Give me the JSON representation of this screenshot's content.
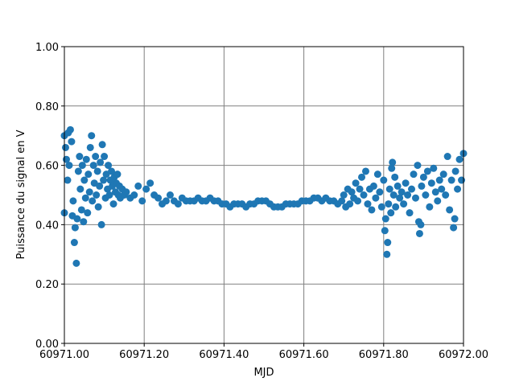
{
  "chart_data": {
    "type": "scatter",
    "xlabel": "MJD",
    "ylabel": "Puissance du signal en V",
    "color": "#1f77b4",
    "grid": true,
    "xlim": [
      60971.0,
      60972.0
    ],
    "xticks": [
      {
        "value": 60971.0,
        "label": "60971.00"
      },
      {
        "value": 60971.2,
        "label": "60971.20"
      },
      {
        "value": 60971.4,
        "label": "60971.40"
      },
      {
        "value": 60971.6,
        "label": "60971.60"
      },
      {
        "value": 60971.8,
        "label": "60971.80"
      },
      {
        "value": 60972.0,
        "label": "60972.00"
      }
    ],
    "ylim": [
      0.0,
      1.0
    ],
    "yticks": [
      {
        "value": 0.0,
        "label": "0.00"
      },
      {
        "value": 0.2,
        "label": "0.20"
      },
      {
        "value": 0.4,
        "label": "0.40"
      },
      {
        "value": 0.6,
        "label": "0.60"
      },
      {
        "value": 0.8,
        "label": "0.80"
      },
      {
        "value": 1.0,
        "label": "1.00"
      }
    ],
    "x": [
      60971.0,
      60971.0,
      60971.003,
      60971.005,
      60971.008,
      60971.01,
      60971.012,
      60971.015,
      60971.018,
      60971.02,
      60971.022,
      60971.025,
      60971.027,
      60971.03,
      60971.032,
      60971.035,
      60971.038,
      60971.04,
      60971.043,
      60971.045,
      60971.048,
      60971.05,
      60971.053,
      60971.055,
      60971.058,
      60971.06,
      60971.063,
      60971.065,
      60971.068,
      60971.07,
      60971.073,
      60971.075,
      60971.078,
      60971.08,
      60971.083,
      60971.085,
      60971.088,
      60971.09,
      60971.093,
      60971.095,
      60971.098,
      60971.1,
      60971.103,
      60971.105,
      60971.108,
      60971.11,
      60971.113,
      60971.115,
      60971.118,
      60971.12,
      60971.123,
      60971.125,
      60971.128,
      60971.13,
      60971.133,
      60971.135,
      60971.138,
      60971.14,
      60971.145,
      60971.15,
      60971.155,
      60971.165,
      60971.175,
      60971.185,
      60971.195,
      60971.205,
      60971.215,
      60971.225,
      60971.235,
      60971.245,
      60971.255,
      60971.265,
      60971.275,
      60971.285,
      60971.295,
      60971.305,
      60971.315,
      60971.325,
      60971.335,
      60971.345,
      60971.355,
      60971.365,
      60971.375,
      60971.385,
      60971.395,
      60971.405,
      60971.415,
      60971.425,
      60971.435,
      60971.445,
      60971.455,
      60971.465,
      60971.475,
      60971.485,
      60971.495,
      60971.505,
      60971.515,
      60971.525,
      60971.535,
      60971.545,
      60971.555,
      60971.565,
      60971.575,
      60971.585,
      60971.595,
      60971.605,
      60971.615,
      60971.625,
      60971.635,
      60971.645,
      60971.655,
      60971.665,
      60971.675,
      60971.685,
      60971.695,
      60971.7,
      60971.705,
      60971.71,
      60971.715,
      60971.72,
      60971.725,
      60971.73,
      60971.735,
      60971.74,
      60971.745,
      60971.75,
      60971.755,
      60971.76,
      60971.765,
      60971.77,
      60971.775,
      60971.78,
      60971.785,
      60971.79,
      60971.795,
      60971.8,
      60971.803,
      60971.805,
      60971.808,
      60971.81,
      60971.812,
      60971.815,
      60971.818,
      60971.82,
      60971.822,
      60971.825,
      60971.828,
      60971.83,
      60971.835,
      60971.84,
      60971.845,
      60971.85,
      60971.855,
      60971.86,
      60971.865,
      60971.87,
      60971.875,
      60971.88,
      60971.885,
      60971.888,
      60971.89,
      60971.893,
      60971.895,
      60971.9,
      60971.905,
      60971.91,
      60971.915,
      60971.92,
      60971.925,
      60971.93,
      60971.935,
      60971.94,
      60971.945,
      60971.95,
      60971.955,
      60971.96,
      60971.965,
      60971.97,
      60971.975,
      60971.978,
      60971.98,
      60971.985,
      60971.99,
      60971.995,
      60972.0
    ],
    "values": [
      0.44,
      0.7,
      0.66,
      0.62,
      0.55,
      0.71,
      0.6,
      0.72,
      0.68,
      0.43,
      0.48,
      0.34,
      0.39,
      0.27,
      0.42,
      0.58,
      0.63,
      0.52,
      0.45,
      0.6,
      0.41,
      0.55,
      0.49,
      0.62,
      0.44,
      0.57,
      0.51,
      0.66,
      0.7,
      0.48,
      0.6,
      0.54,
      0.63,
      0.5,
      0.58,
      0.46,
      0.53,
      0.61,
      0.4,
      0.67,
      0.55,
      0.63,
      0.49,
      0.57,
      0.52,
      0.6,
      0.5,
      0.55,
      0.58,
      0.53,
      0.47,
      0.56,
      0.51,
      0.54,
      0.57,
      0.5,
      0.53,
      0.49,
      0.52,
      0.5,
      0.51,
      0.49,
      0.5,
      0.53,
      0.48,
      0.52,
      0.54,
      0.5,
      0.49,
      0.47,
      0.48,
      0.5,
      0.48,
      0.47,
      0.49,
      0.48,
      0.48,
      0.48,
      0.49,
      0.48,
      0.48,
      0.49,
      0.48,
      0.48,
      0.47,
      0.47,
      0.46,
      0.47,
      0.47,
      0.47,
      0.46,
      0.47,
      0.47,
      0.48,
      0.48,
      0.48,
      0.47,
      0.46,
      0.46,
      0.46,
      0.47,
      0.47,
      0.47,
      0.47,
      0.48,
      0.48,
      0.48,
      0.49,
      0.49,
      0.48,
      0.49,
      0.48,
      0.48,
      0.47,
      0.48,
      0.5,
      0.46,
      0.52,
      0.47,
      0.51,
      0.49,
      0.54,
      0.48,
      0.52,
      0.56,
      0.5,
      0.58,
      0.47,
      0.52,
      0.45,
      0.53,
      0.49,
      0.57,
      0.51,
      0.46,
      0.55,
      0.38,
      0.42,
      0.3,
      0.34,
      0.47,
      0.52,
      0.44,
      0.59,
      0.61,
      0.5,
      0.56,
      0.46,
      0.53,
      0.49,
      0.51,
      0.47,
      0.54,
      0.5,
      0.44,
      0.52,
      0.57,
      0.49,
      0.6,
      0.41,
      0.37,
      0.4,
      0.53,
      0.56,
      0.5,
      0.58,
      0.46,
      0.54,
      0.59,
      0.51,
      0.48,
      0.55,
      0.52,
      0.57,
      0.5,
      0.63,
      0.45,
      0.55,
      0.39,
      0.42,
      0.58,
      0.52,
      0.62,
      0.55,
      0.64
    ]
  }
}
